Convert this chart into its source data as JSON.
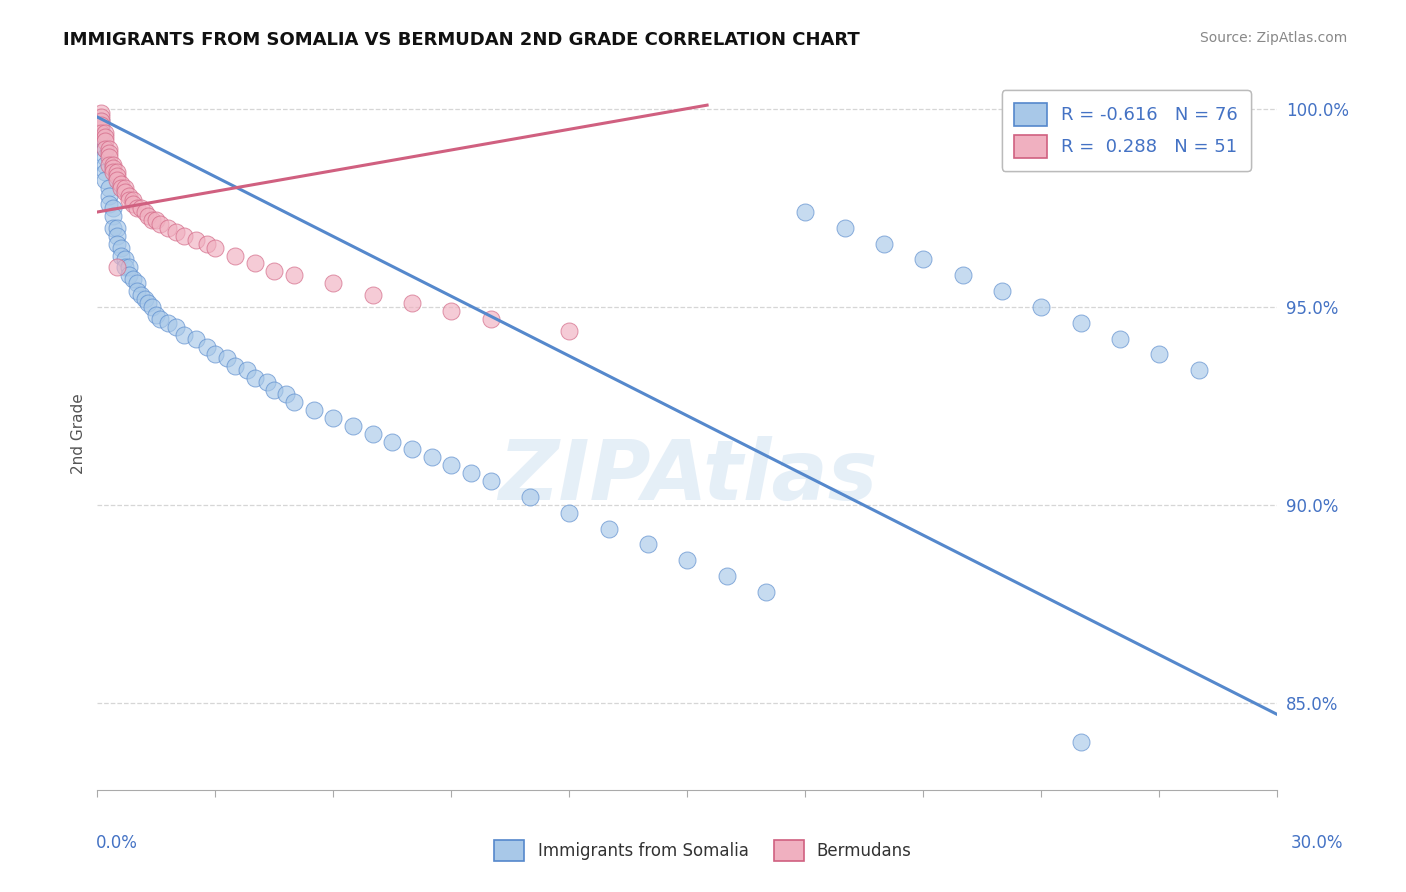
{
  "title": "IMMIGRANTS FROM SOMALIA VS BERMUDAN 2ND GRADE CORRELATION CHART",
  "source_text": "Source: ZipAtlas.com",
  "ylabel": "2nd Grade",
  "xmin": 0.0,
  "xmax": 0.3,
  "ymin": 0.828,
  "ymax": 1.008,
  "blue_R": -0.616,
  "blue_N": 76,
  "pink_R": 0.288,
  "pink_N": 51,
  "blue_color": "#a8c8e8",
  "blue_edge_color": "#5588cc",
  "pink_color": "#f0b0c0",
  "pink_edge_color": "#d06080",
  "legend_label_blue": "Immigrants from Somalia",
  "legend_label_pink": "Bermudans",
  "watermark": "ZIPAtlas",
  "background_color": "#ffffff",
  "grid_color": "#cccccc",
  "blue_trend_x": [
    0.0,
    0.3
  ],
  "blue_trend_y": [
    0.998,
    0.847
  ],
  "pink_trend_x": [
    0.0,
    0.155
  ],
  "pink_trend_y": [
    0.974,
    1.001
  ],
  "ytick_positions": [
    0.85,
    0.9,
    0.95,
    1.0
  ],
  "ytick_labels": [
    "85.0%",
    "90.0%",
    "95.0%",
    "100.0%"
  ],
  "tick_color": "#4472c4",
  "blue_x": [
    0.001,
    0.001,
    0.001,
    0.001,
    0.002,
    0.002,
    0.002,
    0.002,
    0.002,
    0.003,
    0.003,
    0.003,
    0.004,
    0.004,
    0.004,
    0.005,
    0.005,
    0.005,
    0.006,
    0.006,
    0.007,
    0.007,
    0.008,
    0.008,
    0.009,
    0.01,
    0.01,
    0.011,
    0.012,
    0.013,
    0.014,
    0.015,
    0.016,
    0.018,
    0.02,
    0.022,
    0.025,
    0.028,
    0.03,
    0.033,
    0.035,
    0.038,
    0.04,
    0.043,
    0.045,
    0.048,
    0.05,
    0.055,
    0.06,
    0.065,
    0.07,
    0.075,
    0.08,
    0.085,
    0.09,
    0.095,
    0.1,
    0.11,
    0.12,
    0.13,
    0.14,
    0.15,
    0.16,
    0.17,
    0.18,
    0.19,
    0.2,
    0.21,
    0.22,
    0.23,
    0.24,
    0.25,
    0.26,
    0.27,
    0.28,
    0.25
  ],
  "blue_y": [
    0.997,
    0.995,
    0.993,
    0.991,
    0.99,
    0.988,
    0.986,
    0.984,
    0.982,
    0.98,
    0.978,
    0.976,
    0.975,
    0.973,
    0.97,
    0.97,
    0.968,
    0.966,
    0.965,
    0.963,
    0.962,
    0.96,
    0.96,
    0.958,
    0.957,
    0.956,
    0.954,
    0.953,
    0.952,
    0.951,
    0.95,
    0.948,
    0.947,
    0.946,
    0.945,
    0.943,
    0.942,
    0.94,
    0.938,
    0.937,
    0.935,
    0.934,
    0.932,
    0.931,
    0.929,
    0.928,
    0.926,
    0.924,
    0.922,
    0.92,
    0.918,
    0.916,
    0.914,
    0.912,
    0.91,
    0.908,
    0.906,
    0.902,
    0.898,
    0.894,
    0.89,
    0.886,
    0.882,
    0.878,
    0.974,
    0.97,
    0.966,
    0.962,
    0.958,
    0.954,
    0.95,
    0.946,
    0.942,
    0.938,
    0.934,
    0.84
  ],
  "pink_x": [
    0.001,
    0.001,
    0.001,
    0.001,
    0.001,
    0.002,
    0.002,
    0.002,
    0.002,
    0.003,
    0.003,
    0.003,
    0.003,
    0.004,
    0.004,
    0.004,
    0.005,
    0.005,
    0.005,
    0.006,
    0.006,
    0.007,
    0.007,
    0.008,
    0.008,
    0.009,
    0.009,
    0.01,
    0.011,
    0.012,
    0.013,
    0.014,
    0.015,
    0.016,
    0.018,
    0.02,
    0.022,
    0.025,
    0.028,
    0.03,
    0.035,
    0.04,
    0.045,
    0.05,
    0.06,
    0.07,
    0.08,
    0.09,
    0.1,
    0.12,
    0.005
  ],
  "pink_y": [
    0.999,
    0.998,
    0.997,
    0.996,
    0.994,
    0.994,
    0.993,
    0.992,
    0.99,
    0.99,
    0.989,
    0.988,
    0.986,
    0.986,
    0.985,
    0.984,
    0.984,
    0.983,
    0.982,
    0.981,
    0.98,
    0.98,
    0.979,
    0.978,
    0.977,
    0.977,
    0.976,
    0.975,
    0.975,
    0.974,
    0.973,
    0.972,
    0.972,
    0.971,
    0.97,
    0.969,
    0.968,
    0.967,
    0.966,
    0.965,
    0.963,
    0.961,
    0.959,
    0.958,
    0.956,
    0.953,
    0.951,
    0.949,
    0.947,
    0.944,
    0.96
  ]
}
